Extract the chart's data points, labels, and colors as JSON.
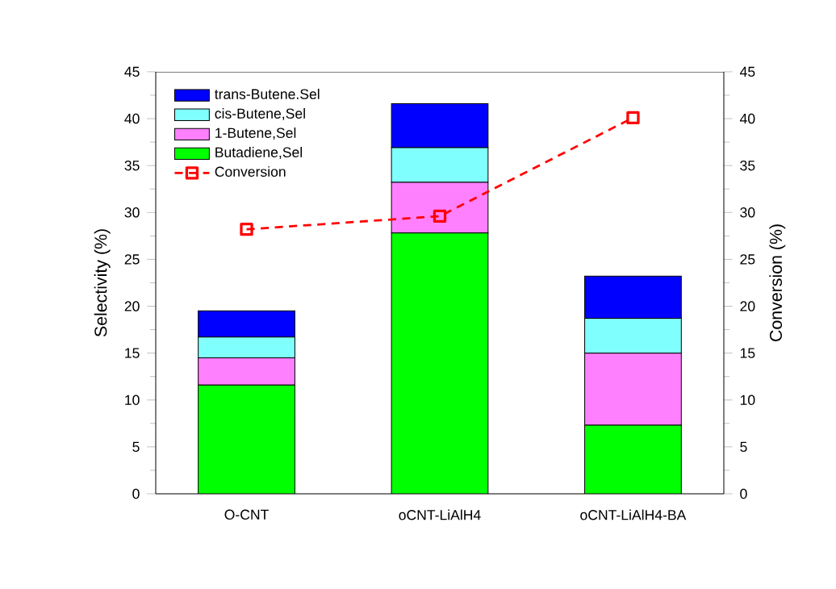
{
  "chart_data": {
    "type": "bar",
    "stacked": true,
    "categories": [
      "O-CNT",
      "oCNT-LiAlH4",
      "oCNT-LiAlH4-BA"
    ],
    "ylabel": "Selectivity (%)",
    "y2label": "Conversion (%)",
    "ylim": [
      0,
      45
    ],
    "yticks": [
      0,
      5,
      10,
      15,
      20,
      25,
      30,
      35,
      40,
      45
    ],
    "y2lim": [
      0,
      45
    ],
    "y2ticks": [
      0,
      5,
      10,
      15,
      20,
      25,
      30,
      35,
      40,
      45
    ],
    "legend": "top left",
    "grid": false,
    "series": [
      {
        "name": "Butadiene,Sel",
        "color": "#00ff00",
        "values": [
          11.6,
          27.8,
          7.3
        ]
      },
      {
        "name": "1-Butene,Sel",
        "color": "#ff80ff",
        "values": [
          2.9,
          5.4,
          7.7
        ]
      },
      {
        "name": "cis-Butene,Sel",
        "color": "#80ffff",
        "values": [
          2.2,
          3.7,
          3.7
        ]
      },
      {
        "name": "trans-Butene.Sel",
        "color": "#0000ff",
        "values": [
          2.8,
          4.7,
          4.5
        ]
      },
      {
        "name": "Conversion",
        "type": "line",
        "axis": "y2",
        "color": "#ff0000",
        "marker": "square",
        "line_style": "dashed",
        "values": [
          28.2,
          29.6,
          40.1
        ]
      }
    ]
  }
}
